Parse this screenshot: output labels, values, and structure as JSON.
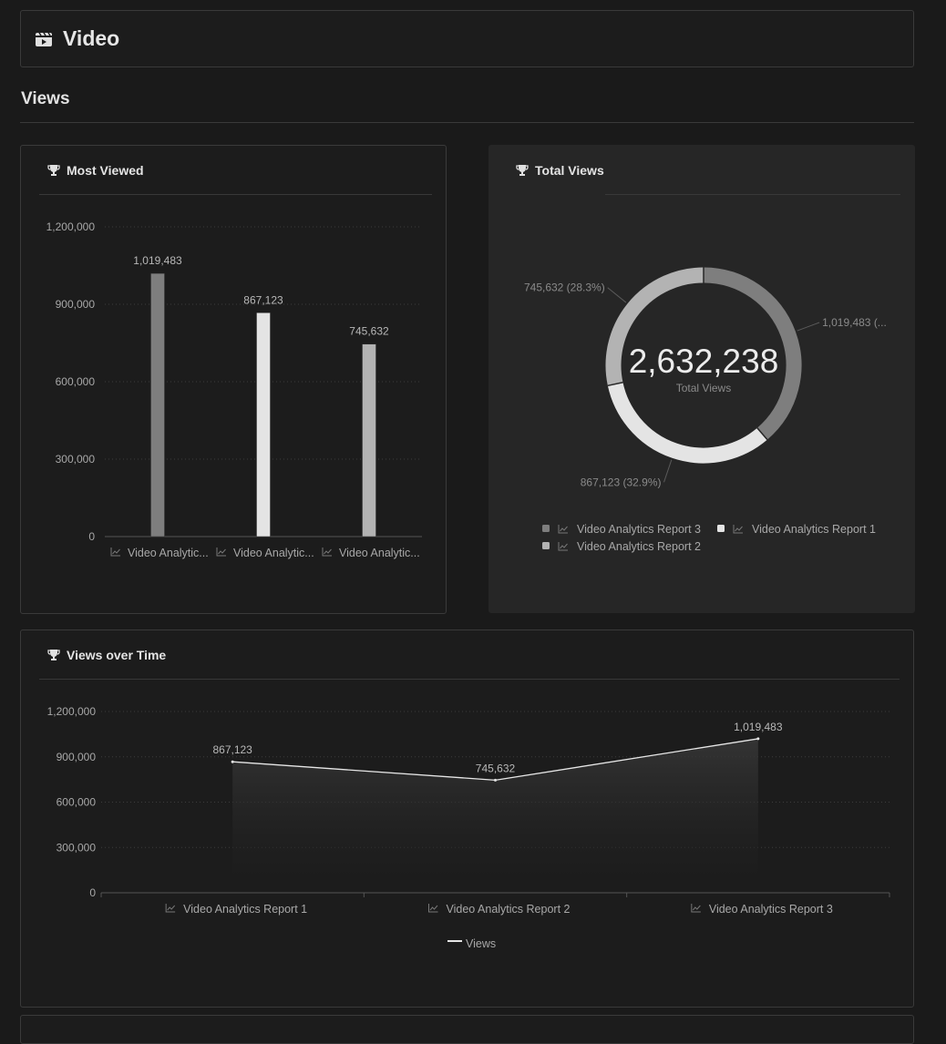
{
  "header": {
    "title": "Video",
    "icon": "video-clip-icon"
  },
  "section": {
    "title": "Views"
  },
  "cards": {
    "most_viewed": {
      "title": "Most Viewed",
      "icon": "trophy-icon"
    },
    "total_views": {
      "title": "Total Views",
      "icon": "trophy-icon",
      "center_value": "2,632,238",
      "center_label": "Total Views"
    },
    "views_over_time": {
      "title": "Views over Time",
      "icon": "trophy-icon"
    }
  },
  "colors": {
    "background": "#1a1a1a",
    "report1": "#e4e4e4",
    "report2": "#b3b3b3",
    "report3": "#7e7e7e"
  },
  "chart_data": [
    {
      "type": "bar",
      "title": "Most Viewed",
      "categories": [
        "Video Analytic...",
        "Video Analytic...",
        "Video Analytic..."
      ],
      "values": [
        1019483,
        867123,
        745632
      ],
      "value_labels": [
        "1,019,483",
        "867,123",
        "745,632"
      ],
      "bar_colors": [
        "#7e7e7e",
        "#e4e4e4",
        "#b3b3b3"
      ],
      "yticks": [
        "0",
        "300,000",
        "600,000",
        "900,000",
        "1,200,000"
      ],
      "ylim": [
        0,
        1200000
      ],
      "grid": true
    },
    {
      "type": "pie",
      "title": "Total Views",
      "labels": [
        "Video Analytics Report 3",
        "Video Analytics Report 1",
        "Video Analytics Report 2"
      ],
      "values": [
        1019483,
        867123,
        745632
      ],
      "slice_colors": [
        "#7e7e7e",
        "#e4e4e4",
        "#b3b3b3"
      ],
      "slice_labels": [
        "1,019,483 (...",
        "867,123 (32.9%)",
        "745,632 (28.3%)"
      ],
      "legend": [
        "Video Analytics Report 3",
        "Video Analytics Report 1",
        "Video Analytics Report 2"
      ],
      "legend_colors": [
        "#7e7e7e",
        "#e4e4e4",
        "#b3b3b3"
      ],
      "legend_placement": "bottom"
    },
    {
      "type": "area",
      "title": "Views over Time",
      "categories": [
        "Video Analytics Report 1",
        "Video Analytics Report 2",
        "Video Analytics Report 3"
      ],
      "series": [
        {
          "name": "Views",
          "values": [
            867123,
            745632,
            1019483
          ]
        }
      ],
      "value_labels": [
        "867,123",
        "745,632",
        "1,019,483"
      ],
      "yticks": [
        "0",
        "300,000",
        "600,000",
        "900,000",
        "1,200,000"
      ],
      "ylim": [
        0,
        1200000
      ],
      "grid": true,
      "legend_placement": "bottom"
    }
  ]
}
